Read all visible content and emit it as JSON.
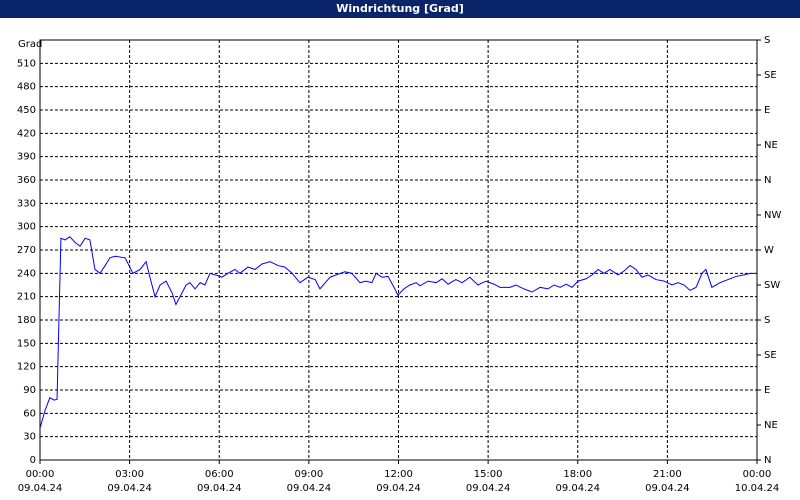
{
  "chart_data": {
    "type": "line",
    "title": "Windrichtung [Grad]",
    "y_label": "Grad",
    "xlim": [
      0,
      24
    ],
    "xticks": [
      {
        "value": 0,
        "label": "00:00",
        "date": "09.04.24"
      },
      {
        "value": 3,
        "label": "03:00",
        "date": "09.04.24"
      },
      {
        "value": 6,
        "label": "06:00",
        "date": "09.04.24"
      },
      {
        "value": 9,
        "label": "09:00",
        "date": "09.04.24"
      },
      {
        "value": 12,
        "label": "12:00",
        "date": "09.04.24"
      },
      {
        "value": 15,
        "label": "15:00",
        "date": "09.04.24"
      },
      {
        "value": 18,
        "label": "18:00",
        "date": "09.04.24"
      },
      {
        "value": 21,
        "label": "21:00",
        "date": "09.04.24"
      },
      {
        "value": 24,
        "label": "00:00",
        "date": "10.04.24"
      }
    ],
    "ylim": [
      0,
      540
    ],
    "yticks": [
      0,
      30,
      60,
      90,
      120,
      150,
      180,
      210,
      240,
      270,
      300,
      330,
      360,
      390,
      420,
      450,
      480,
      510
    ],
    "y2lim": [
      0,
      540
    ],
    "y2ticks": [
      {
        "value": 0,
        "label": "N"
      },
      {
        "value": 45,
        "label": "NE"
      },
      {
        "value": 90,
        "label": "E"
      },
      {
        "value": 135,
        "label": "SE"
      },
      {
        "value": 180,
        "label": "S"
      },
      {
        "value": 225,
        "label": "SW"
      },
      {
        "value": 270,
        "label": "W"
      },
      {
        "value": 315,
        "label": "NW"
      },
      {
        "value": 360,
        "label": "N"
      },
      {
        "value": 405,
        "label": "NE"
      },
      {
        "value": 450,
        "label": "E"
      },
      {
        "value": 495,
        "label": "SE"
      },
      {
        "value": 540,
        "label": "S"
      }
    ],
    "grid": true,
    "series": [
      {
        "color": "#0000ff",
        "x": [
          0,
          0.17,
          0.33,
          0.47,
          0.57,
          0.7,
          0.84,
          1.0,
          1.17,
          1.34,
          1.51,
          1.67,
          1.84,
          2.01,
          2.18,
          2.34,
          2.51,
          2.85,
          3.11,
          3.35,
          3.55,
          3.68,
          3.85,
          4.02,
          4.22,
          4.42,
          4.55,
          4.69,
          4.89,
          5.02,
          5.19,
          5.36,
          5.52,
          5.69,
          5.96,
          6.09,
          6.29,
          6.53,
          6.69,
          6.96,
          7.2,
          7.43,
          7.7,
          7.97,
          8.2,
          8.44,
          8.7,
          8.97,
          9.21,
          9.37,
          9.71,
          9.91,
          10.21,
          10.44,
          10.71,
          10.91,
          11.11,
          11.25,
          11.45,
          11.65,
          11.85,
          11.98,
          12.18,
          12.38,
          12.59,
          12.72,
          12.99,
          13.26,
          13.46,
          13.66,
          13.92,
          14.13,
          14.39,
          14.66,
          14.93,
          15.2,
          15.4,
          15.73,
          15.93,
          16.2,
          16.47,
          16.74,
          17.0,
          17.21,
          17.41,
          17.61,
          17.81,
          18.01,
          18.28,
          18.48,
          18.68,
          18.88,
          19.08,
          19.35,
          19.55,
          19.75,
          19.95,
          20.15,
          20.35,
          20.62,
          20.89,
          21.15,
          21.36,
          21.56,
          21.76,
          21.96,
          22.16,
          22.29,
          22.49,
          22.76,
          23.03,
          23.3,
          23.56,
          23.77,
          24
        ],
        "values": [
          41,
          64,
          80,
          77,
          78,
          285,
          283,
          287,
          280,
          275,
          285,
          283,
          245,
          240,
          250,
          260,
          262,
          260,
          240,
          245,
          255,
          235,
          210,
          225,
          230,
          215,
          200,
          210,
          225,
          228,
          220,
          228,
          225,
          240,
          237,
          235,
          240,
          245,
          240,
          248,
          245,
          252,
          255,
          250,
          248,
          240,
          228,
          235,
          232,
          220,
          235,
          238,
          242,
          240,
          228,
          230,
          228,
          240,
          235,
          236,
          222,
          212,
          220,
          225,
          228,
          224,
          230,
          228,
          233,
          226,
          232,
          228,
          235,
          225,
          230,
          226,
          222,
          222,
          225,
          220,
          216,
          222,
          220,
          225,
          222,
          226,
          222,
          230,
          233,
          238,
          245,
          240,
          245,
          238,
          243,
          250,
          245,
          235,
          238,
          232,
          230,
          225,
          228,
          225,
          218,
          222,
          240,
          245,
          222,
          228,
          232,
          236,
          238,
          240,
          240
        ]
      }
    ]
  }
}
